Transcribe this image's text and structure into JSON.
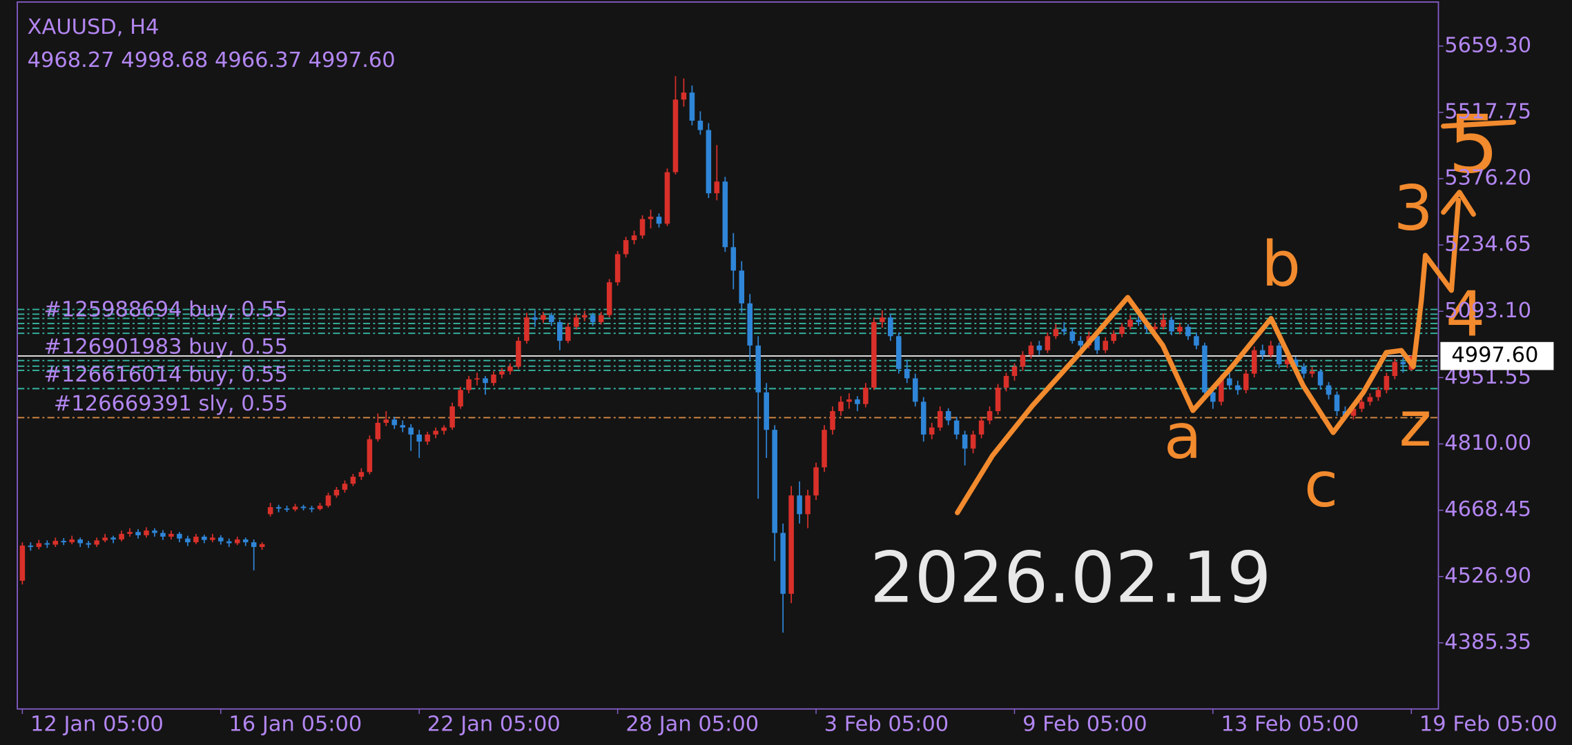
{
  "chart_data": {
    "type": "candlestick",
    "title": "XAUUSD, H4",
    "ohlc_label": "4968.27 4998.68 4966.37 4997.60",
    "last_price_label": "4997.60",
    "watermark": "2026.02.19",
    "up_color": "#d9302a",
    "down_color": "#2f86d8",
    "ylim": [
      4244.2,
      5757.6
    ],
    "yticks": [
      {
        "value": 5659.3,
        "label": "5659.30"
      },
      5517.75,
      {
        "value": 5376.2,
        "label": "5376.20"
      },
      5234.65,
      {
        "value": 5093.1,
        "label": "5093.10"
      },
      4951.55,
      {
        "value": 4810,
        "label": "4810.00"
      },
      4668.45,
      {
        "value": 4526.9,
        "label": "4526.90"
      },
      4385.35
    ],
    "categories": [
      "12 Jan 05:00",
      null,
      null,
      null,
      null,
      null,
      null,
      null,
      null,
      null,
      null,
      null,
      null,
      null,
      null,
      null,
      null,
      null,
      null,
      null,
      null,
      null,
      null,
      null,
      "16 Jan 05:00",
      null,
      null,
      null,
      null,
      null,
      null,
      null,
      null,
      null,
      null,
      null,
      null,
      null,
      null,
      null,
      null,
      null,
      null,
      null,
      null,
      null,
      null,
      null,
      "22 Jan 05:00",
      null,
      null,
      null,
      null,
      null,
      null,
      null,
      null,
      null,
      null,
      null,
      null,
      null,
      null,
      null,
      null,
      null,
      null,
      null,
      null,
      null,
      null,
      null,
      "28 Jan 05:00",
      null,
      null,
      null,
      null,
      null,
      null,
      null,
      null,
      null,
      null,
      null,
      null,
      null,
      null,
      null,
      null,
      null,
      null,
      null,
      null,
      null,
      null,
      null,
      "3 Feb 05:00",
      null,
      null,
      null,
      null,
      null,
      null,
      null,
      null,
      null,
      null,
      null,
      null,
      null,
      null,
      null,
      null,
      null,
      null,
      null,
      null,
      null,
      null,
      null,
      "9 Feb 05:00",
      null,
      null,
      null,
      null,
      null,
      null,
      null,
      null,
      null,
      null,
      null,
      null,
      null,
      null,
      null,
      null,
      null,
      null,
      null,
      null,
      null,
      null,
      null,
      "13 Feb 05:00",
      null,
      null,
      null,
      null,
      null,
      null,
      null,
      null,
      null,
      null,
      null,
      null,
      null,
      null,
      null,
      null,
      null,
      null,
      null,
      null,
      null,
      null,
      null,
      "19 Feb 05:00"
    ],
    "candles": [
      [
        4518,
        4600,
        4510,
        4593
      ],
      [
        4593,
        4600,
        4582,
        4590
      ],
      [
        4590,
        4605,
        4585,
        4598
      ],
      [
        4598,
        4604,
        4588,
        4595
      ],
      [
        4595,
        4610,
        4590,
        4603
      ],
      [
        4603,
        4609,
        4594,
        4600
      ],
      [
        4600,
        4614,
        4596,
        4606
      ],
      [
        4606,
        4610,
        4590,
        4598
      ],
      [
        4598,
        4603,
        4588,
        4595
      ],
      [
        4595,
        4610,
        4590,
        4604
      ],
      [
        4604,
        4618,
        4600,
        4610
      ],
      [
        4610,
        4614,
        4598,
        4606
      ],
      [
        4606,
        4625,
        4602,
        4618
      ],
      [
        4618,
        4630,
        4612,
        4622
      ],
      [
        4622,
        4628,
        4608,
        4615
      ],
      [
        4615,
        4632,
        4610,
        4625
      ],
      [
        4625,
        4630,
        4612,
        4620
      ],
      [
        4620,
        4626,
        4605,
        4612
      ],
      [
        4612,
        4625,
        4606,
        4618
      ],
      [
        4618,
        4622,
        4600,
        4608
      ],
      [
        4608,
        4614,
        4592,
        4600
      ],
      [
        4600,
        4618,
        4596,
        4612
      ],
      [
        4612,
        4616,
        4598,
        4605
      ],
      [
        4605,
        4618,
        4600,
        4610
      ],
      [
        4610,
        4615,
        4595,
        4602
      ],
      [
        4602,
        4608,
        4590,
        4598
      ],
      [
        4598,
        4612,
        4594,
        4606
      ],
      [
        4606,
        4610,
        4592,
        4600
      ],
      [
        4600,
        4606,
        4540,
        4590
      ],
      [
        4590,
        4600,
        4584,
        4596
      ],
      [
        4660,
        4684,
        4655,
        4675
      ],
      [
        4675,
        4680,
        4664,
        4672
      ],
      [
        4672,
        4678,
        4665,
        4670
      ],
      [
        4670,
        4682,
        4666,
        4676
      ],
      [
        4676,
        4680,
        4668,
        4673
      ],
      [
        4673,
        4678,
        4664,
        4671
      ],
      [
        4671,
        4684,
        4668,
        4678
      ],
      [
        4678,
        4706,
        4674,
        4700
      ],
      [
        4700,
        4718,
        4695,
        4712
      ],
      [
        4712,
        4732,
        4706,
        4725
      ],
      [
        4725,
        4746,
        4720,
        4740
      ],
      [
        4740,
        4758,
        4733,
        4750
      ],
      [
        4750,
        4828,
        4745,
        4820
      ],
      [
        4820,
        4875,
        4815,
        4855
      ],
      [
        4855,
        4880,
        4848,
        4862
      ],
      [
        4862,
        4868,
        4842,
        4850
      ],
      [
        4850,
        4860,
        4835,
        4845
      ],
      [
        4845,
        4852,
        4795,
        4830
      ],
      [
        4830,
        4840,
        4780,
        4815
      ],
      [
        4815,
        4836,
        4808,
        4830
      ],
      [
        4830,
        4845,
        4822,
        4838
      ],
      [
        4838,
        4850,
        4830,
        4845
      ],
      [
        4845,
        4898,
        4840,
        4890
      ],
      [
        4890,
        4932,
        4885,
        4925
      ],
      [
        4925,
        4955,
        4918,
        4948
      ],
      [
        4948,
        4962,
        4935,
        4950
      ],
      [
        4950,
        4955,
        4915,
        4940
      ],
      [
        4940,
        4965,
        4934,
        4958
      ],
      [
        4958,
        4972,
        4950,
        4965
      ],
      [
        4965,
        4982,
        4958,
        4975
      ],
      [
        4975,
        5038,
        4970,
        5030
      ],
      [
        5030,
        5090,
        5024,
        5080
      ],
      [
        5080,
        5095,
        5060,
        5075
      ],
      [
        5075,
        5092,
        5068,
        5085
      ],
      [
        5085,
        5090,
        5062,
        5070
      ],
      [
        5070,
        5075,
        5010,
        5030
      ],
      [
        5030,
        5068,
        5025,
        5060
      ],
      [
        5060,
        5088,
        5054,
        5080
      ],
      [
        5080,
        5094,
        5072,
        5085
      ],
      [
        5085,
        5090,
        5062,
        5070
      ],
      [
        5070,
        5092,
        5065,
        5085
      ],
      [
        5085,
        5162,
        5080,
        5155
      ],
      [
        5155,
        5222,
        5148,
        5215
      ],
      [
        5215,
        5252,
        5208,
        5245
      ],
      [
        5245,
        5265,
        5236,
        5255
      ],
      [
        5255,
        5298,
        5248,
        5290
      ],
      [
        5290,
        5310,
        5270,
        5295
      ],
      [
        5295,
        5302,
        5272,
        5280
      ],
      [
        5280,
        5398,
        5275,
        5390
      ],
      [
        5390,
        5595,
        5385,
        5545
      ],
      [
        5545,
        5590,
        5530,
        5560
      ],
      [
        5560,
        5575,
        5490,
        5500
      ],
      [
        5500,
        5520,
        5470,
        5480
      ],
      [
        5480,
        5495,
        5335,
        5345
      ],
      [
        5345,
        5448,
        5330,
        5370
      ],
      [
        5370,
        5380,
        5220,
        5230
      ],
      [
        5230,
        5260,
        5140,
        5180
      ],
      [
        5180,
        5200,
        5090,
        5110
      ],
      [
        5110,
        5130,
        4990,
        5020
      ],
      [
        5020,
        5040,
        4693,
        4920
      ],
      [
        4920,
        4940,
        4780,
        4840
      ],
      [
        4840,
        4850,
        4560,
        4620
      ],
      [
        4620,
        4640,
        4407,
        4490
      ],
      [
        4490,
        4720,
        4470,
        4700
      ],
      [
        4700,
        4730,
        4640,
        4660
      ],
      [
        4660,
        4712,
        4630,
        4700
      ],
      [
        4700,
        4770,
        4690,
        4760
      ],
      [
        4760,
        4850,
        4750,
        4840
      ],
      [
        4840,
        4890,
        4830,
        4880
      ],
      [
        4880,
        4912,
        4870,
        4900
      ],
      [
        4900,
        4918,
        4885,
        4905
      ],
      [
        4905,
        4912,
        4880,
        4895
      ],
      [
        4895,
        4940,
        4888,
        4930
      ],
      [
        4930,
        5080,
        4925,
        5070
      ],
      [
        5070,
        5095,
        5058,
        5080
      ],
      [
        5080,
        5088,
        5030,
        5040
      ],
      [
        5040,
        5048,
        4960,
        4970
      ],
      [
        4970,
        4990,
        4940,
        4950
      ],
      [
        4950,
        4960,
        4890,
        4900
      ],
      [
        4900,
        4910,
        4815,
        4830
      ],
      [
        4830,
        4855,
        4820,
        4845
      ],
      [
        4845,
        4890,
        4838,
        4880
      ],
      [
        4880,
        4886,
        4850,
        4860
      ],
      [
        4860,
        4868,
        4820,
        4830
      ],
      [
        4830,
        4838,
        4764,
        4800
      ],
      [
        4800,
        4838,
        4790,
        4830
      ],
      [
        4830,
        4868,
        4822,
        4860
      ],
      [
        4860,
        4890,
        4852,
        4880
      ],
      [
        4880,
        4938,
        4872,
        4930
      ],
      [
        4930,
        4962,
        4922,
        4955
      ],
      [
        4955,
        4982,
        4945,
        4975
      ],
      [
        4975,
        5008,
        4966,
        5000
      ],
      [
        5000,
        5028,
        4992,
        5020
      ],
      [
        5020,
        5030,
        5000,
        5010
      ],
      [
        5010,
        5048,
        5004,
        5040
      ],
      [
        5040,
        5066,
        5034,
        5055
      ],
      [
        5055,
        5070,
        5042,
        5050
      ],
      [
        5050,
        5058,
        5024,
        5030
      ],
      [
        5030,
        5040,
        5012,
        5020
      ],
      [
        5020,
        5050,
        5014,
        5040
      ],
      [
        5040,
        5046,
        5002,
        5010
      ],
      [
        5010,
        5038,
        5004,
        5030
      ],
      [
        5030,
        5052,
        5024,
        5045
      ],
      [
        5045,
        5068,
        5038,
        5060
      ],
      [
        5060,
        5085,
        5054,
        5075
      ],
      [
        5075,
        5092,
        5062,
        5070
      ],
      [
        5070,
        5078,
        5046,
        5055
      ],
      [
        5055,
        5068,
        5048,
        5060
      ],
      [
        5060,
        5088,
        5054,
        5075
      ],
      [
        5075,
        5082,
        5042,
        5050
      ],
      [
        5050,
        5068,
        5044,
        5060
      ],
      [
        5060,
        5066,
        5032,
        5040
      ],
      [
        5040,
        5048,
        5012,
        5020
      ],
      [
        5020,
        5026,
        4905,
        4920
      ],
      [
        4920,
        4932,
        4885,
        4900
      ],
      [
        4900,
        4958,
        4892,
        4950
      ],
      [
        4950,
        4962,
        4926,
        4935
      ],
      [
        4935,
        4945,
        4915,
        4925
      ],
      [
        4925,
        4968,
        4918,
        4960
      ],
      [
        4960,
        5018,
        4952,
        5010
      ],
      [
        5010,
        5022,
        4990,
        5000
      ],
      [
        5000,
        5030,
        4994,
        5020
      ],
      [
        5020,
        5026,
        4972,
        4980
      ],
      [
        4980,
        4998,
        4972,
        4990
      ],
      [
        4990,
        4996,
        4966,
        4975
      ],
      [
        4975,
        4982,
        4950,
        4960
      ],
      [
        4960,
        4974,
        4952,
        4965
      ],
      [
        4965,
        4970,
        4926,
        4935
      ],
      [
        4935,
        4942,
        4905,
        4915
      ],
      [
        4915,
        4922,
        4870,
        4880
      ],
      [
        4880,
        4890,
        4860,
        4870
      ],
      [
        4870,
        4892,
        4862,
        4885
      ],
      [
        4885,
        4908,
        4878,
        4900
      ],
      [
        4900,
        4918,
        4892,
        4910
      ],
      [
        4910,
        4932,
        4902,
        4925
      ],
      [
        4925,
        4962,
        4918,
        4955
      ],
      [
        4955,
        4992,
        4948,
        4985
      ],
      [
        4985,
        4994,
        4962,
        4980
      ],
      [
        4968.27,
        4998.68,
        4966.37,
        4997.6
      ]
    ],
    "orders": [
      {
        "label": "#125988694 buy, 0.55",
        "price": 5067,
        "color": "#36b5a2"
      },
      {
        "label": "#126901983 buy, 0.55",
        "price": 4988,
        "color": "#36b5a2"
      },
      {
        "label": "#126616014 buy, 0.55",
        "price": 4928,
        "color": "#36b5a2"
      },
      {
        "label": "#126669391 sly, 0.55",
        "price": 4866,
        "color": "#d98a45"
      }
    ],
    "extra_levels": [
      5097,
      5087,
      5078,
      5057,
      5046,
      4976,
      4967
    ],
    "level_color": "#36b5a2",
    "annotations": [
      "a",
      "b",
      "c",
      "z",
      "3",
      "4",
      "5"
    ],
    "annotation_color": "#f28a2e"
  }
}
